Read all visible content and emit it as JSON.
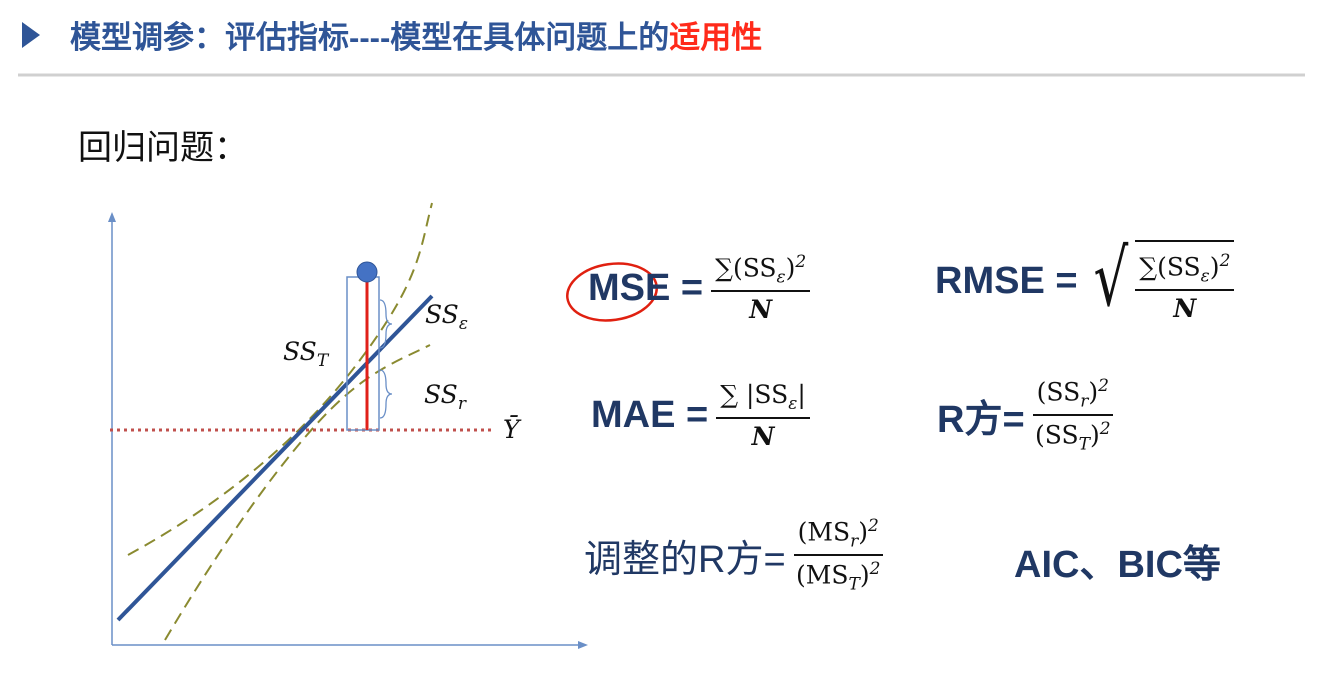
{
  "header": {
    "title": "模型调参：评估指标----模型在具体问题上的",
    "highlight": "适用性"
  },
  "section": "回归问题：",
  "diagram": {
    "labels": [
      [
        {
          "text": "SS"
        },
        {
          "sub": "ε"
        }
      ],
      [
        {
          "text": "SS"
        },
        {
          "sub": "T"
        }
      ],
      [
        {
          "text": "SS"
        },
        {
          "sub": "r"
        }
      ],
      [
        {
          "text": "Ȳ"
        }
      ]
    ]
  },
  "formulas": [
    {
      "lhs": "MSE =",
      "num": [
        {
          "text": "∑(SS"
        },
        {
          "sub": "ε"
        },
        {
          "text": ")"
        },
        {
          "sup": "2"
        }
      ],
      "den": [
        {
          "text": "N"
        }
      ]
    },
    {
      "lhs": "RMSE =",
      "sqrt": true,
      "num": [
        {
          "text": "∑(SS"
        },
        {
          "sub": "ε"
        },
        {
          "text": ")"
        },
        {
          "sup": "2"
        }
      ],
      "den": [
        {
          "text": "N"
        }
      ]
    },
    {
      "lhs": "MAE =",
      "num": [
        {
          "text": "∑ |SS"
        },
        {
          "sub": "ε"
        },
        {
          "text": "|"
        }
      ],
      "den": [
        {
          "text": "N"
        }
      ]
    },
    {
      "lhs": "R方=",
      "num": [
        {
          "text": "(SS"
        },
        {
          "sub": "r"
        },
        {
          "text": ")"
        },
        {
          "sup": "2"
        }
      ],
      "den": [
        {
          "text": "(SS"
        },
        {
          "sub": "T"
        },
        {
          "text": ")"
        },
        {
          "sup": "2"
        }
      ]
    },
    {
      "lhs": "调整的R方=",
      "num": [
        {
          "text": "(MS"
        },
        {
          "sub": "r"
        },
        {
          "text": ")"
        },
        {
          "sup": "2"
        }
      ],
      "den": [
        {
          "text": "(MS"
        },
        {
          "sub": "T"
        },
        {
          "text": ")"
        },
        {
          "sup": "2"
        }
      ]
    }
  ],
  "note": "AIC、BIC等"
}
